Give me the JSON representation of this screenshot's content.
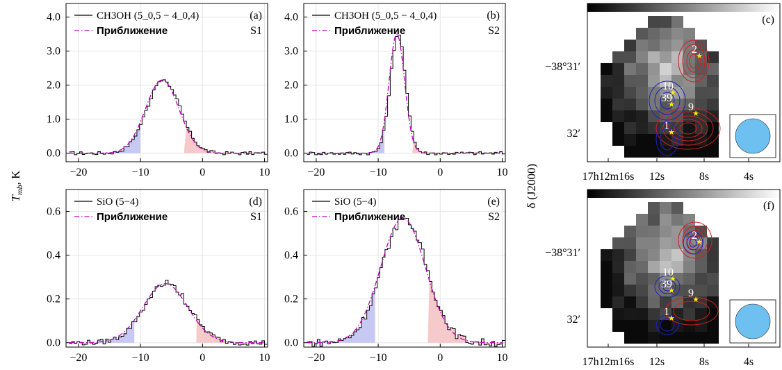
{
  "chart_data": [
    {
      "type": "line",
      "panel": "(a)",
      "source": "S1",
      "legend": [
        "CH3OH (5_0,5 − 4_0,4)",
        "Приближение"
      ],
      "xlim": [
        -22,
        10.5
      ],
      "ylim": [
        -0.25,
        4.4
      ],
      "yticks": [
        0.0,
        1.0,
        2.0,
        3.0,
        4.0
      ],
      "ytick_labels": [
        "0.0",
        "1.0",
        "2.0",
        "3.0",
        "4.0"
      ],
      "xticks": [
        -20,
        -10,
        0,
        10
      ],
      "fit": {
        "amplitude": 2.15,
        "center": -6.5,
        "sigma": 2.7
      },
      "blue_wing": [
        -20,
        -10
      ],
      "red_wing": [
        -3,
        10
      ]
    },
    {
      "type": "line",
      "panel": "(b)",
      "source": "S2",
      "legend": [
        "CH3OH (5_0,5 − 4_0,4)",
        "Приближение"
      ],
      "xlim": [
        -22,
        10.5
      ],
      "ylim": [
        -0.25,
        4.4
      ],
      "yticks": [
        0.0,
        1.0,
        2.0,
        3.0,
        4.0
      ],
      "ytick_labels": [
        "0.0",
        "1.0",
        "2.0",
        "3.0",
        "4.0"
      ],
      "xticks": [
        -20,
        -10,
        0,
        10
      ],
      "fit": {
        "amplitude": 3.5,
        "center": -7.0,
        "sigma": 1.25
      },
      "blue_wing": [
        -20,
        -9
      ],
      "red_wing": [
        -4.5,
        10
      ]
    },
    {
      "type": "line",
      "panel": "(d)",
      "source": "S1",
      "legend": [
        "SiO (5−4)",
        "Приближение"
      ],
      "xlim": [
        -22,
        10.5
      ],
      "ylim": [
        -0.02,
        0.7
      ],
      "yticks": [
        0.0,
        0.2,
        0.4,
        0.6
      ],
      "ytick_labels": [
        "0.0",
        "0.2",
        "0.4",
        "0.6"
      ],
      "xticks": [
        -20,
        -10,
        0,
        10
      ],
      "fit": {
        "amplitude": 0.27,
        "center": -6.0,
        "sigma": 3.6
      },
      "blue_wing": [
        -20,
        -11
      ],
      "red_wing": [
        -1,
        10
      ]
    },
    {
      "type": "line",
      "panel": "(e)",
      "source": "S2",
      "legend": [
        "SiO (5−4)",
        "Приближение"
      ],
      "xlim": [
        -22,
        10.5
      ],
      "ylim": [
        -0.02,
        0.7
      ],
      "yticks": [
        0.0,
        0.2,
        0.4,
        0.6
      ],
      "ytick_labels": [
        "0.0",
        "0.2",
        "0.4",
        "0.6"
      ],
      "xticks": [
        -20,
        -10,
        0,
        10
      ],
      "fit": {
        "amplitude": 0.57,
        "center": -6.0,
        "sigma": 3.6
      },
      "blue_wing": [
        -20,
        -10.5
      ],
      "red_wing": [
        -2,
        10
      ]
    },
    {
      "type": "heatmap",
      "panel": "(c)",
      "sources": [
        "2",
        "10",
        "39",
        "9",
        "1"
      ],
      "ytick_labels": [
        "−38°31′",
        "32′"
      ],
      "xtick_labels": [
        "17h12m16s",
        "12s",
        "8s",
        "4s"
      ]
    },
    {
      "type": "heatmap",
      "panel": "(f)",
      "sources": [
        "2",
        "10",
        "39",
        "9",
        "1"
      ],
      "ytick_labels": [
        "−38°31′",
        "32′"
      ],
      "xtick_labels": [
        "17h12m16s",
        "12s",
        "8s",
        "4s"
      ]
    }
  ],
  "labels": {
    "ylabel_left": "T",
    "ylabel_left_sub": "mb",
    "ylabel_left_unit": ", K",
    "ylabel_right": "δ (J2000)"
  },
  "colors": {
    "data": "#000000",
    "fit": "#c000c0",
    "blue_fill": "#c8c8f4",
    "red_fill": "#f6caca",
    "blue_contour": "#2020c0",
    "red_contour": "#d02020",
    "beam": "#6ec0f0",
    "star": "#ffee00"
  }
}
